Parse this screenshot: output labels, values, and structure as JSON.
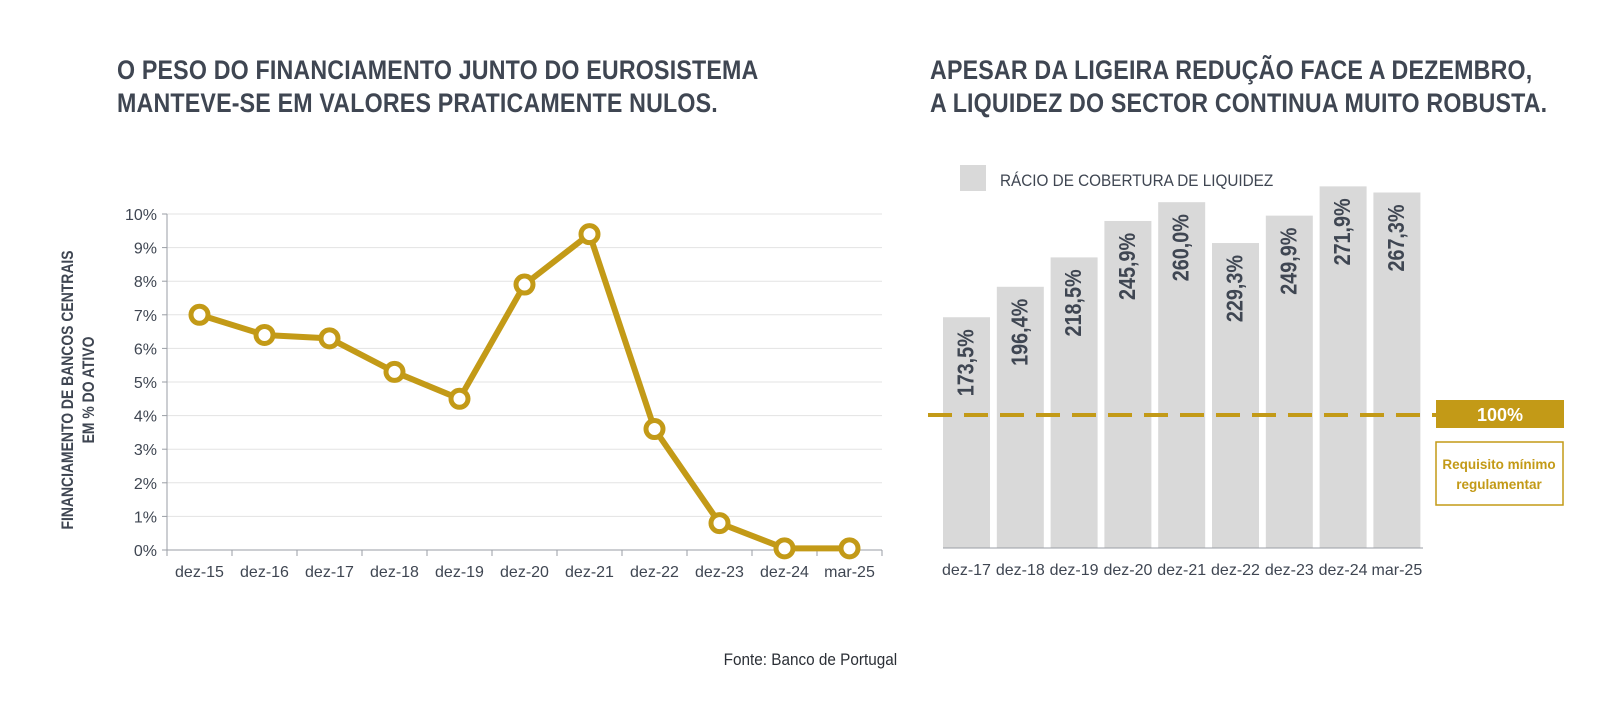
{
  "left": {
    "title_lines": [
      "O PESO DO FINANCIAMENTO JUNTO DO EUROSISTEMA",
      "MANTEVE-SE EM VALORES PRATICAMENTE NULOS."
    ]
  },
  "right": {
    "title_lines": [
      "APESAR DA LIGEIRA REDUÇÃO FACE A DEZEMBRO,",
      "A LIQUIDEZ DO SECTOR CONTINUA MUITO ROBUSTA."
    ],
    "requirement_label": "100%",
    "requirement_note_lines": [
      "Requisito mínimo",
      "regulamentar"
    ]
  },
  "source": "Fonte: Banco de Portugal",
  "colors": {
    "gold": "#c39a17",
    "bar": "#d9d9d9",
    "text": "#3f4652",
    "grid": "#e3e3e3"
  },
  "chart_data": [
    {
      "type": "line",
      "title": "",
      "ylabel_lines": [
        "FINANCIAMENTO DE BANCOS CENTRAIS",
        "EM % DO ATIVO"
      ],
      "categories": [
        "dez-15",
        "dez-16",
        "dez-17",
        "dez-18",
        "dez-19",
        "dez-20",
        "dez-21",
        "dez-22",
        "dez-23",
        "dez-24",
        "mar-25"
      ],
      "values": [
        7.0,
        6.4,
        6.3,
        5.3,
        4.5,
        7.9,
        9.4,
        3.6,
        0.8,
        0.05,
        0.05
      ],
      "ylim": [
        0,
        10
      ],
      "yticks": [
        "0%",
        "1%",
        "2%",
        "3%",
        "4%",
        "5%",
        "6%",
        "7%",
        "8%",
        "9%",
        "10%"
      ],
      "grid": true
    },
    {
      "type": "bar",
      "title": "",
      "legend": "RÁCIO DE COBERTURA DE LIQUIDEZ",
      "legend_position": "top-left",
      "categories": [
        "dez-17",
        "dez-18",
        "dez-19",
        "dez-20",
        "dez-21",
        "dez-22",
        "dez-23",
        "dez-24",
        "mar-25"
      ],
      "values": [
        173.5,
        196.4,
        218.5,
        245.9,
        260.0,
        229.3,
        249.9,
        271.9,
        267.3
      ],
      "labels": [
        "173,5%",
        "196,4%",
        "218,5%",
        "245,9%",
        "260,0%",
        "229,3%",
        "249,9%",
        "271,9%",
        "267,3%"
      ],
      "reference_line": 100
    }
  ]
}
